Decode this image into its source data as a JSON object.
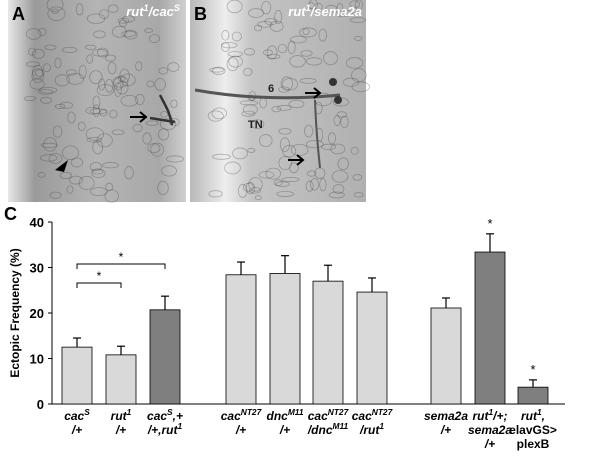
{
  "panels": [
    {
      "letter": "A",
      "title": [
        "rut",
        "1",
        "/cac",
        "S"
      ]
    },
    {
      "letter": "B",
      "title": [
        "rut",
        "1",
        "/sema2a"
      ],
      "labels": [
        "6",
        "TN"
      ]
    }
  ],
  "chart_data": {
    "type": "bar",
    "panel_letter": "C",
    "y_label": "Ectopic Frequency (%)",
    "categories": [
      [
        [
          "cac",
          "S"
        ],
        [
          "/+"
        ]
      ],
      [
        [
          "rut",
          "1"
        ],
        [
          "/+"
        ]
      ],
      [
        [
          "cac",
          "S",
          ",+"
        ],
        [
          "/+,rut",
          "1"
        ]
      ],
      [
        [
          "cac",
          "NT27"
        ],
        [
          "/+"
        ]
      ],
      [
        [
          "dnc",
          "M11"
        ],
        [
          "/+"
        ]
      ],
      [
        [
          "cac",
          "NT27"
        ],
        [
          "/dnc",
          "M11"
        ]
      ],
      [
        [
          "cac",
          "NT27"
        ],
        [
          "/rut",
          "1"
        ]
      ],
      [
        [
          "sema2a"
        ],
        [
          "/+"
        ]
      ],
      [
        [
          "rut",
          "1",
          "/+;"
        ],
        [
          "sema2a"
        ],
        [
          "/+"
        ]
      ],
      [
        [
          "rut",
          "1",
          ","
        ],
        [
          "elavGS>"
        ],
        [
          "plexB"
        ]
      ]
    ],
    "values": [
      12.5,
      10.8,
      20.7,
      28.4,
      28.7,
      27.0,
      24.6,
      21.1,
      33.4,
      3.7
    ],
    "errors": [
      2.0,
      1.9,
      3.0,
      2.8,
      3.9,
      3.5,
      3.1,
      2.2,
      4.0,
      1.6
    ],
    "colors": [
      "#d9d9d9",
      "#d9d9d9",
      "#7f7f7f",
      "#d9d9d9",
      "#d9d9d9",
      "#d9d9d9",
      "#d9d9d9",
      "#d9d9d9",
      "#7f7f7f",
      "#7f7f7f"
    ],
    "bar_annotations": [
      null,
      null,
      null,
      null,
      null,
      null,
      null,
      null,
      "*",
      "*"
    ],
    "brackets": [
      {
        "bars": [
          0,
          1
        ],
        "label": "*"
      },
      {
        "bars": [
          0,
          2
        ],
        "label": "*"
      }
    ],
    "ylim": [
      0,
      40
    ],
    "yticks": [
      0,
      10,
      20,
      30,
      40
    ]
  }
}
